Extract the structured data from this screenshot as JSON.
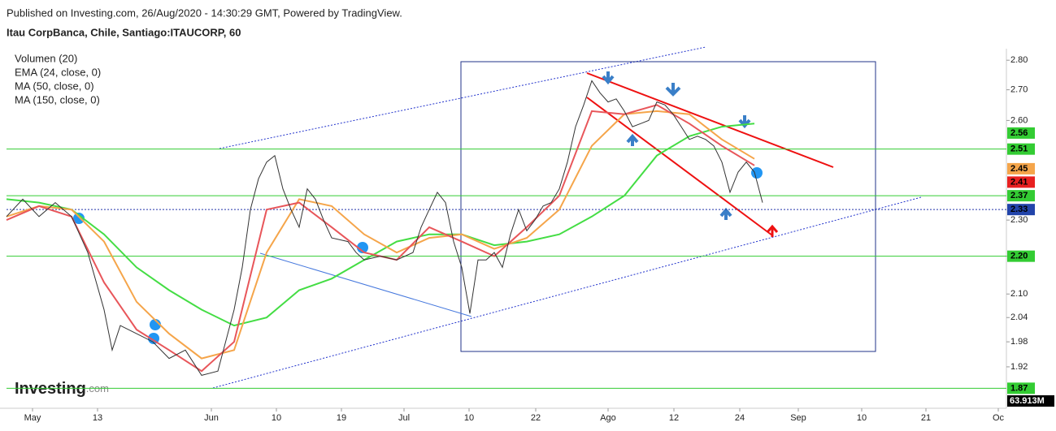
{
  "header": {
    "published": "Published on Investing.com, 26/Aug/2020 - 14:30:29 GMT, Powered by TradingView.",
    "symbol": "Itau CorpBanca, Chile, Santiago:ITAUCORP, 60"
  },
  "logo": {
    "name": "Investing",
    "suffix": ".com"
  },
  "chart_data": {
    "type": "line",
    "log_scale": true,
    "indicators": [
      "Volumen (20)",
      "EMA (24, close, 0)",
      "MA (50, close, 0)",
      "MA (150, close, 0)"
    ],
    "xlim": [
      0,
      123
    ],
    "ylim": [
      1.83,
      2.84
    ],
    "xticks": [
      {
        "value": 3.2,
        "label": "May"
      },
      {
        "value": 11.2,
        "label": "13"
      },
      {
        "value": 25.2,
        "label": "Jun"
      },
      {
        "value": 33.2,
        "label": "10"
      },
      {
        "value": 41.2,
        "label": "19"
      },
      {
        "value": 48.9,
        "label": "Jul"
      },
      {
        "value": 56.9,
        "label": "10"
      },
      {
        "value": 65.1,
        "label": "22"
      },
      {
        "value": 74,
        "label": "Ago"
      },
      {
        "value": 82.1,
        "label": "12"
      },
      {
        "value": 90.2,
        "label": "24"
      },
      {
        "value": 97.4,
        "label": "Sep"
      },
      {
        "value": 105.2,
        "label": "10"
      },
      {
        "value": 113.1,
        "label": "21"
      },
      {
        "value": 122,
        "label": "Oc"
      }
    ],
    "yticks": [
      {
        "value": 2.8,
        "label": "2.80"
      },
      {
        "value": 2.7,
        "label": "2.70"
      },
      {
        "value": 2.6,
        "label": "2.60"
      },
      {
        "value": 2.3,
        "label": "2.30"
      },
      {
        "value": 2.2,
        "label": "2.20"
      },
      {
        "value": 2.1,
        "label": "2.10"
      },
      2.04,
      1.98,
      1.92
    ],
    "series": [
      {
        "color": "#333333",
        "x": [
          0,
          2,
          4,
          6,
          8,
          10,
          12,
          13,
          14,
          16,
          18,
          20,
          22,
          24,
          26,
          28,
          29,
          30,
          31,
          32,
          33,
          34,
          35,
          36,
          37,
          38,
          39,
          40,
          42,
          43,
          44,
          46,
          48,
          50,
          51,
          52,
          53,
          54,
          55,
          56,
          57,
          58,
          59,
          60,
          61,
          62,
          63,
          64,
          65,
          66,
          67,
          68,
          69,
          70,
          71,
          72,
          73,
          74,
          75,
          76,
          77,
          78,
          79,
          80,
          81,
          82,
          83,
          84,
          85,
          86,
          87,
          88,
          89,
          90,
          91,
          92,
          93
        ],
        "values": [
          2.31,
          2.36,
          2.31,
          2.35,
          2.31,
          2.21,
          2.06,
          1.96,
          2.02,
          2.0,
          1.98,
          1.94,
          1.96,
          1.9,
          1.91,
          2.06,
          2.17,
          2.33,
          2.42,
          2.47,
          2.49,
          2.39,
          2.33,
          2.28,
          2.39,
          2.36,
          2.3,
          2.25,
          2.24,
          2.21,
          2.19,
          2.2,
          2.19,
          2.21,
          2.28,
          2.33,
          2.38,
          2.35,
          2.24,
          2.17,
          2.05,
          2.19,
          2.19,
          2.21,
          2.17,
          2.26,
          2.33,
          2.27,
          2.3,
          2.34,
          2.35,
          2.39,
          2.47,
          2.58,
          2.65,
          2.73,
          2.69,
          2.66,
          2.67,
          2.63,
          2.58,
          2.59,
          2.6,
          2.66,
          2.65,
          2.62,
          2.58,
          2.54,
          2.55,
          2.54,
          2.52,
          2.47,
          2.38,
          2.44,
          2.47,
          2.44,
          2.35
        ]
      },
      {
        "color": "#e8565a",
        "x": [
          0,
          4,
          8,
          12,
          16,
          20,
          24,
          28,
          32,
          36,
          40,
          44,
          48,
          52,
          56,
          60,
          64,
          68,
          72,
          76,
          80,
          84,
          88,
          92
        ],
        "values": [
          2.3,
          2.34,
          2.31,
          2.13,
          2.01,
          1.96,
          1.91,
          1.98,
          2.33,
          2.35,
          2.28,
          2.21,
          2.19,
          2.28,
          2.24,
          2.2,
          2.28,
          2.37,
          2.63,
          2.62,
          2.65,
          2.59,
          2.52,
          2.46
        ]
      },
      {
        "color": "#f5a54a",
        "x": [
          0,
          4,
          8,
          12,
          16,
          20,
          24,
          28,
          32,
          36,
          40,
          44,
          48,
          52,
          56,
          60,
          64,
          68,
          72,
          76,
          80,
          84,
          88,
          92
        ],
        "values": [
          2.31,
          2.34,
          2.33,
          2.24,
          2.08,
          2.0,
          1.94,
          1.96,
          2.21,
          2.36,
          2.34,
          2.26,
          2.21,
          2.25,
          2.26,
          2.22,
          2.25,
          2.33,
          2.52,
          2.62,
          2.63,
          2.62,
          2.54,
          2.48
        ]
      },
      {
        "color": "#44dd44",
        "x": [
          0,
          4,
          8,
          12,
          16,
          20,
          24,
          28,
          32,
          36,
          40,
          44,
          48,
          52,
          56,
          60,
          64,
          68,
          72,
          76,
          80,
          84,
          88,
          92
        ],
        "values": [
          2.36,
          2.35,
          2.33,
          2.26,
          2.17,
          2.11,
          2.06,
          2.02,
          2.04,
          2.11,
          2.14,
          2.19,
          2.24,
          2.26,
          2.26,
          2.23,
          2.24,
          2.26,
          2.31,
          2.37,
          2.49,
          2.55,
          2.58,
          2.59
        ]
      }
    ],
    "hlines": [
      {
        "value": 2.51,
        "color": "#33cc33"
      },
      {
        "value": 2.37,
        "color": "#33cc33"
      },
      {
        "value": 2.2,
        "color": "#33cc33"
      },
      {
        "value": 1.87,
        "color": "#33cc33"
      },
      {
        "value": 2.33,
        "color": "#2233aa"
      }
    ],
    "price_labels": [
      {
        "value": 2.56,
        "color": "#33cc33"
      },
      {
        "value": 2.51,
        "color": "#33cc33"
      },
      {
        "value": 2.45,
        "color": "#f5a54a"
      },
      {
        "value": 2.41,
        "color": "#e82020"
      },
      {
        "value": 2.37,
        "color": "#33cc33"
      },
      {
        "value": 2.33,
        "color": "#2244aa"
      },
      {
        "value": 2.2,
        "label": "2.20",
        "color": "#33cc33"
      },
      {
        "value": 1.87,
        "color": "#33cc33"
      }
    ],
    "volume_label": "63.913M"
  }
}
